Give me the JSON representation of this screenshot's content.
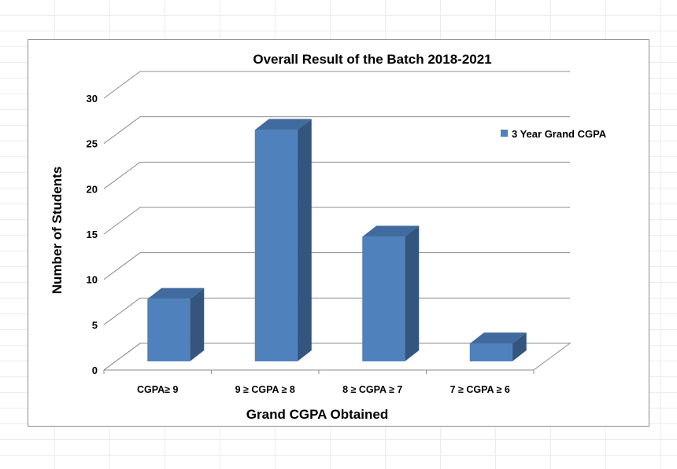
{
  "chart_data": {
    "type": "bar",
    "title": "Overall Result of the Batch 2018-2021",
    "xlabel": "Grand CGPA Obtained",
    "ylabel": "Number of Students",
    "categories": [
      "CGPA≥ 9",
      "9 ≥ CGPA ≥ 8",
      "8 ≥ CGPA ≥ 7",
      "7 ≥ CGPA ≥ 6"
    ],
    "series": [
      {
        "name": "3 Year Grand CGPA",
        "values": [
          7,
          26,
          14,
          2
        ]
      }
    ],
    "ylim": [
      0,
      30
    ],
    "yticks": [
      0,
      5,
      10,
      15,
      20,
      25,
      30
    ],
    "grid": true,
    "legend_position": "right",
    "three_d": true,
    "colors": {
      "bar_front": "#4f81bd",
      "bar_side": "#34557e",
      "bar_top": "#416a9e",
      "gridline": "#8c8c8c"
    }
  }
}
